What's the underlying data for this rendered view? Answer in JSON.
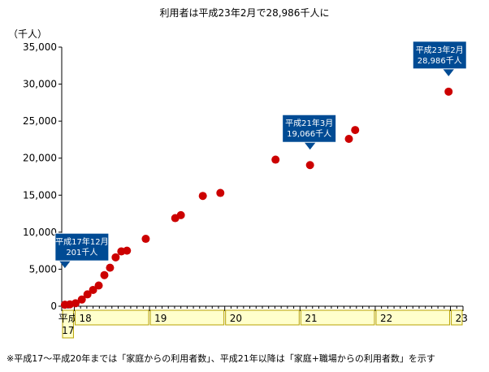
{
  "chart_data": {
    "type": "scatter",
    "title": "利用者は平成23年2月で28,986千人に",
    "ylabel": "（千人）",
    "ylim": [
      0,
      35000
    ],
    "yticks": [
      0,
      5000,
      10000,
      15000,
      20000,
      25000,
      30000,
      35000
    ],
    "ytick_labels": [
      "0",
      "5,000",
      "10,000",
      "15,000",
      "20,000",
      "25,000",
      "30,000",
      "35,000"
    ],
    "grid": false,
    "marker_color": "#cc0000",
    "x_unit": "month index (0 = 平成17年12月)",
    "xlim": [
      0,
      64
    ],
    "year_segments": [
      {
        "label": "平成\n17",
        "start": 0,
        "end": 2
      },
      {
        "label": "18",
        "start": 2,
        "end": 14
      },
      {
        "label": "19",
        "start": 14,
        "end": 26
      },
      {
        "label": "20",
        "start": 26,
        "end": 38
      },
      {
        "label": "21",
        "start": 38,
        "end": 50
      },
      {
        "label": "22",
        "start": 50,
        "end": 62
      },
      {
        "label": "23",
        "start": 62,
        "end": 64
      }
    ],
    "points": [
      {
        "x": 0.5,
        "y": 201
      },
      {
        "x": 1.3,
        "y": 250
      },
      {
        "x": 2.2,
        "y": 400
      },
      {
        "x": 3.2,
        "y": 900
      },
      {
        "x": 4.1,
        "y": 1600
      },
      {
        "x": 5.0,
        "y": 2200
      },
      {
        "x": 5.9,
        "y": 2800
      },
      {
        "x": 6.8,
        "y": 4200
      },
      {
        "x": 7.7,
        "y": 5200
      },
      {
        "x": 8.6,
        "y": 6600
      },
      {
        "x": 9.5,
        "y": 7400
      },
      {
        "x": 10.4,
        "y": 7500
      },
      {
        "x": 13.4,
        "y": 9100
      },
      {
        "x": 18.1,
        "y": 11900
      },
      {
        "x": 19.0,
        "y": 12300
      },
      {
        "x": 22.5,
        "y": 14900
      },
      {
        "x": 25.3,
        "y": 15300
      },
      {
        "x": 34.1,
        "y": 19800
      },
      {
        "x": 39.6,
        "y": 19066
      },
      {
        "x": 45.8,
        "y": 22600
      },
      {
        "x": 46.8,
        "y": 23800
      },
      {
        "x": 61.7,
        "y": 28986
      }
    ],
    "annotations": [
      {
        "line1": "平成17年12月",
        "line2": "201千人",
        "point_index": 0
      },
      {
        "line1": "平成21年3月",
        "line2": "19,066千人",
        "point_index": 18
      },
      {
        "line1": "平成23年2月",
        "line2": "28,986千人",
        "point_index": 21
      }
    ],
    "callout_color": "#004b94",
    "year_box_color": "#ffffcc",
    "year_box_border": "#b8a300"
  },
  "footnote": "※平成17〜平成20年までは「家庭からの利用者数」、平成21年以降は「家庭+職場からの利用者数」を示す"
}
